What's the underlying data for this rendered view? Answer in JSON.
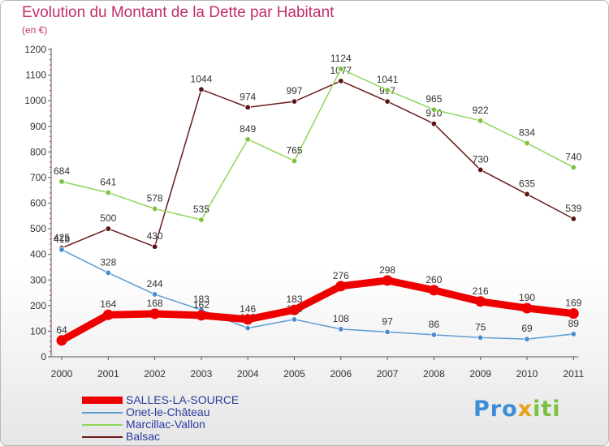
{
  "chart_data": {
    "type": "line",
    "title": "Evolution du Montant de la Dette par Habitant",
    "subtitle": "(en €)",
    "categories": [
      "2000",
      "2001",
      "2002",
      "2003",
      "2004",
      "2005",
      "2006",
      "2007",
      "2008",
      "2009",
      "2010",
      "2011"
    ],
    "y_ticks": [
      "0",
      "100",
      "200",
      "300",
      "400",
      "500",
      "600",
      "700",
      "800",
      "900",
      "1000",
      "1100",
      "1200"
    ],
    "ylim": [
      0,
      1200
    ],
    "grid": false,
    "legend_position": "bottom-left",
    "series": [
      {
        "name": "Balsac",
        "color": "#6b1a1a",
        "marker": "#5a1414",
        "values": [
          425,
          500,
          430,
          1044,
          974,
          997,
          1077,
          997,
          910,
          730,
          635,
          539
        ],
        "labels": [
          "425",
          "500",
          "430",
          "1044",
          "974",
          "997",
          "1077",
          "997",
          "910",
          "730",
          "635",
          "539"
        ]
      },
      {
        "name": "Marcillac-Vallon",
        "color": "#8ed65a",
        "marker": "#7cc242",
        "values": [
          684,
          641,
          578,
          535,
          849,
          765,
          1124,
          1041,
          965,
          922,
          834,
          740
        ],
        "labels": [
          "684",
          "641",
          "578",
          "535",
          "849",
          "765",
          "1124",
          "1041",
          "965",
          "922",
          "834",
          "740"
        ]
      },
      {
        "name": "Onet-le-Château",
        "color": "#5b9bd5",
        "marker": "#4a8ccc",
        "values": [
          418,
          328,
          244,
          183,
          112,
          146,
          108,
          97,
          86,
          75,
          69,
          89
        ],
        "labels": [
          "418",
          "328",
          "244",
          "183",
          "112",
          "146",
          "108",
          "97",
          "86",
          "75",
          "69",
          "89"
        ]
      },
      {
        "name": "SALLES-LA-SOURCE",
        "color": "#ee0000",
        "marker": "#ee0000",
        "values": [
          64,
          164,
          168,
          162,
          146,
          183,
          276,
          298,
          260,
          216,
          190,
          169
        ],
        "labels": [
          "64",
          "164",
          "168",
          "162",
          "146",
          "183",
          "276",
          "298",
          "260",
          "216",
          "190",
          "169"
        ]
      }
    ],
    "legend": [
      {
        "name": "SALLES-LA-SOURCE",
        "color": "#ee0000",
        "thickness": 9
      },
      {
        "name": "Onet-le-Château",
        "color": "#5b9bd5",
        "thickness": 2
      },
      {
        "name": "Marcillac-Vallon",
        "color": "#8ed65a",
        "thickness": 2
      },
      {
        "name": "Balsac",
        "color": "#6b1a1a",
        "thickness": 2
      }
    ]
  },
  "logo": {
    "part1": "Pro",
    "part2": "x",
    "part3": "iti"
  }
}
